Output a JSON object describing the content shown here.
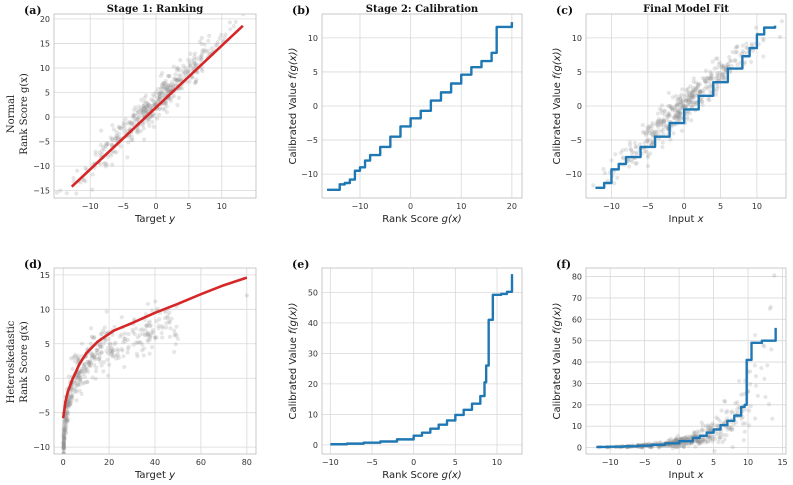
{
  "colors": {
    "scatter": "#8c8c8c",
    "red_curve": "#d62728",
    "blue_curve": "#1f77b4",
    "grid": "#d9d9d9"
  },
  "row_labels": {
    "row1": [
      "Normal",
      "Rank Score g(x)"
    ],
    "row2": [
      "Heteroskedastic",
      "Rank Score g(x)"
    ]
  },
  "chart_data": [
    {
      "id": "a",
      "panel_label": "(a)",
      "title": "Stage 1: Ranking",
      "type": "scatter",
      "xlabel": "Target y",
      "ylabel": "",
      "xlim": [
        -15.5,
        15.2
      ],
      "ylim": [
        -16.5,
        21
      ],
      "xticks": [
        -10,
        -5,
        0,
        5,
        10
      ],
      "yticks": [
        -15,
        -10,
        -5,
        0,
        5,
        10,
        15,
        20
      ],
      "scatter_model": {
        "relation": "linear",
        "slope": 1.3,
        "intercept": 2.7,
        "noise": 1.8,
        "x_range": [
          -12,
          12
        ],
        "count": 450
      },
      "curve": {
        "color": "red",
        "x": [
          -12.8,
          13.2
        ],
        "y": [
          -14.2,
          18.6
        ]
      }
    },
    {
      "id": "b",
      "panel_label": "(b)",
      "title": "Stage 2: Calibration",
      "type": "line",
      "xlabel": "Rank Score g(x)",
      "ylabel": "Calibrated Value f(g(x))",
      "xlim": [
        -17.5,
        22
      ],
      "ylim": [
        -13.5,
        13.5
      ],
      "xticks": [
        -10,
        0,
        10,
        20
      ],
      "yticks": [
        -10,
        -5,
        0,
        5,
        10
      ],
      "series": [
        {
          "color": "blue",
          "x": [
            -16.5,
            -14,
            -13,
            -12,
            -11,
            -10,
            -9,
            -8,
            -6,
            -4,
            -2,
            0,
            2,
            4,
            6,
            8,
            10,
            12,
            14,
            16,
            17,
            18,
            20
          ],
          "y": [
            -12.3,
            -11.5,
            -11.3,
            -10.8,
            -9.5,
            -9,
            -8,
            -7.2,
            -6,
            -4.5,
            -3,
            -1.8,
            -0.7,
            0.8,
            2,
            3.3,
            4.6,
            5.7,
            6.6,
            7.8,
            11.6,
            11.6,
            12.3
          ]
        }
      ]
    },
    {
      "id": "c",
      "panel_label": "(c)",
      "title": "Final Model Fit",
      "type": "scatter",
      "xlabel": "Input x",
      "ylabel": "Calibrated Value f(g(x))",
      "xlim": [
        -13.5,
        14
      ],
      "ylim": [
        -13.5,
        13.5
      ],
      "xticks": [
        -10,
        -5,
        0,
        5,
        10
      ],
      "yticks": [
        -10,
        -5,
        0,
        5,
        10
      ],
      "scatter_model": {
        "relation": "linear",
        "slope": 0.95,
        "intercept": 0,
        "noise": 1.2,
        "x_range": [
          -11,
          11
        ],
        "count": 450
      },
      "curve": {
        "color": "blue",
        "x": [
          -12.2,
          -11,
          -10,
          -9,
          -8,
          -6,
          -4,
          -2,
          0,
          2,
          4,
          6,
          8,
          9,
          10,
          11,
          12.5
        ],
        "y": [
          -12,
          -11.3,
          -9.3,
          -8.5,
          -7.5,
          -6,
          -4.5,
          -2.5,
          -0.5,
          1.5,
          3.5,
          5.5,
          7.3,
          8.5,
          10.5,
          11.5,
          11.8
        ]
      }
    },
    {
      "id": "d",
      "panel_label": "(d)",
      "title": "",
      "type": "scatter",
      "xlabel": "Target y",
      "ylabel": "",
      "xlim": [
        -4,
        84
      ],
      "ylim": [
        -11,
        16
      ],
      "xticks": [
        0,
        20,
        40,
        60,
        80
      ],
      "yticks": [
        -10,
        -5,
        0,
        5,
        10,
        15
      ],
      "scatter_model": {
        "relation": "log",
        "a": 3.5,
        "b": -6,
        "noise": 1.6,
        "x_range": [
          0.2,
          50
        ],
        "count": 450
      },
      "curve": {
        "color": "red",
        "x": [
          0,
          1,
          2,
          4,
          7,
          10,
          15,
          22,
          30,
          40,
          50,
          60,
          70,
          80
        ],
        "y": [
          -5.8,
          -3.4,
          -2,
          -0.2,
          2,
          3.6,
          5.3,
          6.9,
          8,
          9.5,
          10.8,
          12.2,
          13.5,
          14.6
        ]
      }
    },
    {
      "id": "e",
      "panel_label": "(e)",
      "title": "",
      "type": "line",
      "xlabel": "Rank Score g(x)",
      "ylabel": "Calibrated Value f(g(x))",
      "xlim": [
        -11,
        13
      ],
      "ylim": [
        -3,
        58
      ],
      "xticks": [
        -10,
        -5,
        0,
        5,
        10
      ],
      "yticks": [
        0,
        10,
        20,
        30,
        40,
        50
      ],
      "series": [
        {
          "color": "blue",
          "x": [
            -10,
            -8,
            -6,
            -4,
            -2,
            0,
            1,
            2,
            3,
            4,
            5,
            6,
            7,
            8,
            8.5,
            8.7,
            9,
            9.2,
            9.5,
            10.5,
            11.2,
            11.8
          ],
          "y": [
            0.2,
            0.4,
            0.7,
            1.1,
            1.8,
            3,
            4,
            5.3,
            6.6,
            8,
            9.8,
            11.5,
            13.5,
            16,
            20.5,
            26,
            41,
            41,
            49.2,
            49.5,
            50.2,
            56
          ]
        }
      ]
    },
    {
      "id": "f",
      "panel_label": "(f)",
      "title": "",
      "type": "scatter",
      "xlabel": "Input x",
      "ylabel": "Calibrated Value f(g(x))",
      "xlim": [
        -13.5,
        15.5
      ],
      "ylim": [
        -3,
        84
      ],
      "xticks": [
        -10,
        -5,
        0,
        5,
        10,
        15
      ],
      "yticks": [
        0,
        10,
        20,
        30,
        40,
        50,
        60,
        70,
        80
      ],
      "scatter_model": {
        "relation": "exp",
        "a": 2.6,
        "k": 0.22,
        "noise": 0.45,
        "x_range": [
          -11,
          13
        ],
        "count": 450
      },
      "curve": {
        "color": "blue",
        "x": [
          -12,
          -10,
          -8,
          -6,
          -4,
          -2,
          0,
          2,
          3,
          4,
          5,
          6,
          7,
          8,
          9,
          9.5,
          9.8,
          10.2,
          10.5,
          12,
          14
        ],
        "y": [
          0.3,
          0.4,
          0.6,
          0.9,
          1.3,
          2,
          3,
          4.5,
          5.5,
          7,
          8.5,
          10.5,
          12.5,
          15,
          19,
          20,
          41,
          41,
          49,
          50,
          56
        ]
      }
    }
  ]
}
